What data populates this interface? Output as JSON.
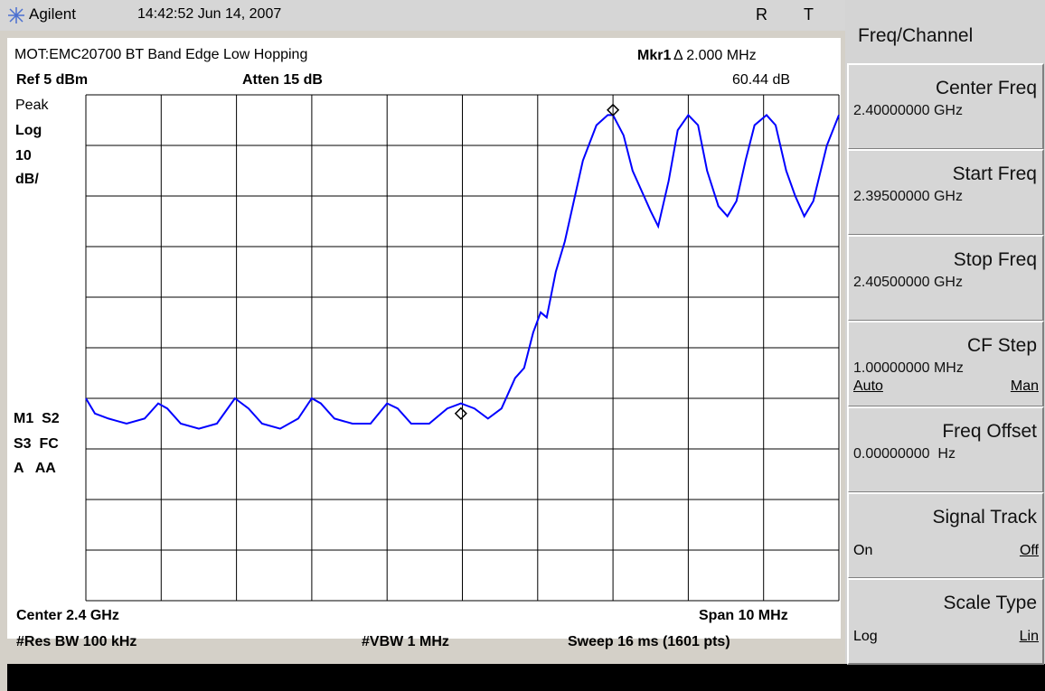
{
  "header": {
    "brand": "Agilent",
    "timestamp": "14:42:52 Jun 14, 2007",
    "flag_r": "R",
    "flag_t": "T"
  },
  "screen": {
    "title": "MOT:EMC20700 BT Band Edge Low Hopping",
    "marker_label": "Mkr1",
    "marker_delta_x": "Δ 2.000 MHz",
    "marker_delta_y": "60.44 dB",
    "ref_level": "Ref 5 dBm",
    "attenuation": "Atten 15 dB",
    "left_labels": [
      "Peak",
      "Log",
      "10",
      "dB/"
    ],
    "status_labels": [
      "M1  S2",
      "S3  FC",
      "A   AA"
    ],
    "center": "Center 2.4 GHz",
    "span": "Span 10 MHz",
    "res_bw": "#Res BW 100 kHz",
    "vbw": "#VBW 1 MHz",
    "sweep": "Sweep 16 ms (1601 pts)",
    "trace": {
      "type": "line",
      "color": "#0000ff",
      "xlim": [
        2.395,
        2.405
      ],
      "ylim": [
        -95,
        5
      ],
      "xticks": [
        2.395,
        2.396,
        2.397,
        2.398,
        2.399,
        2.4,
        2.401,
        2.402,
        2.403,
        2.404,
        2.405
      ],
      "yticks": [
        5,
        -5,
        -15,
        -25,
        -35,
        -45,
        -55,
        -65,
        -75,
        -85,
        -95
      ],
      "grid": true,
      "x": [
        2.395,
        2.39512,
        2.3953,
        2.39554,
        2.39578,
        2.39596,
        2.39608,
        2.39626,
        2.3965,
        2.39674,
        2.39698,
        2.39716,
        2.39734,
        2.39758,
        2.39782,
        2.398,
        2.39812,
        2.3983,
        2.39854,
        2.39878,
        2.399,
        2.39914,
        2.39932,
        2.39956,
        2.3998,
        2.39998,
        2.40016,
        2.40034,
        2.40052,
        2.4007,
        2.40082,
        2.40094,
        2.40104,
        2.40112,
        2.40124,
        2.40136,
        2.40148,
        2.4016,
        2.40178,
        2.40193,
        2.402,
        2.40214,
        2.40226,
        2.40241,
        2.4025,
        2.4026,
        2.40274,
        2.40286,
        2.403,
        2.40313,
        2.40325,
        2.4034,
        2.40352,
        2.40364,
        2.40376,
        2.40388,
        2.40404,
        2.40416,
        2.4043,
        2.40442,
        2.40454,
        2.40466,
        2.40484,
        2.405
      ],
      "values": [
        -55,
        -58,
        -59,
        -60,
        -59,
        -56,
        -57,
        -60,
        -61,
        -60,
        -55,
        -57,
        -60,
        -61,
        -59,
        -55,
        -56,
        -59,
        -60,
        -60,
        -56,
        -57,
        -60,
        -60,
        -57,
        -56,
        -57,
        -59,
        -57,
        -51,
        -49,
        -42,
        -38,
        -39,
        -30,
        -24,
        -16,
        -8,
        -1,
        1,
        1,
        -3,
        -10,
        -15,
        -18,
        -21,
        -12,
        -2,
        1,
        -1,
        -10,
        -17,
        -19,
        -16,
        -8,
        -1,
        1,
        -1,
        -10,
        -15,
        -19,
        -16,
        -5,
        1
      ],
      "markers": [
        {
          "x": 2.402,
          "value": 2
        },
        {
          "x": 2.39998,
          "value": -58
        }
      ]
    }
  },
  "softkeys": {
    "menu_title": "Freq/Channel",
    "keys": [
      {
        "label": "Center Freq",
        "value": "2.40000000 GHz"
      },
      {
        "label": "Start Freq",
        "value": "2.39500000 GHz"
      },
      {
        "label": "Stop Freq",
        "value": "2.40500000 GHz"
      },
      {
        "label": "CF Step",
        "value": "1.00000000 MHz",
        "left": "Auto",
        "right": "Man"
      },
      {
        "label": "Freq Offset",
        "value": "0.00000000  Hz"
      },
      {
        "label": "Signal Track",
        "left": "On",
        "right": "Off"
      },
      {
        "label": "Scale Type",
        "left": "Log",
        "right": "Lin"
      }
    ]
  }
}
